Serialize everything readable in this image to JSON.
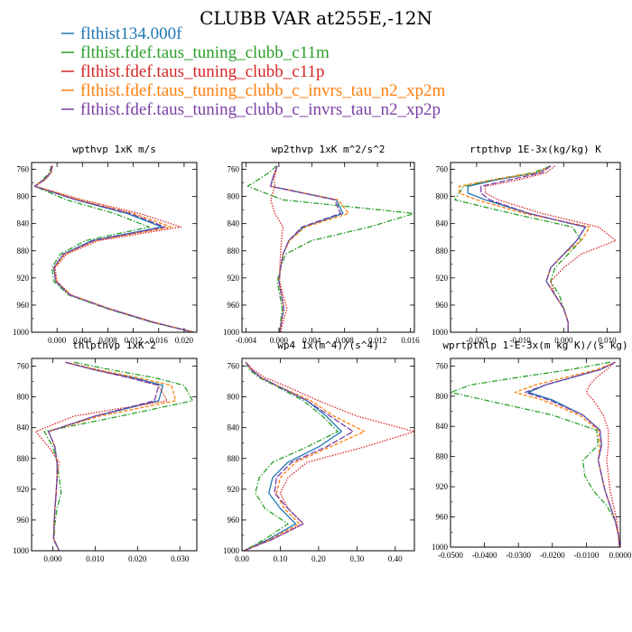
{
  "title": "CLUBB VAR at255E,-12N",
  "colors": {
    "blue": "#1f77b4",
    "green": "#2ca02c",
    "red": "#d62728",
    "orange": "#ff7f0e",
    "purple": "#7b3fa5"
  },
  "legend": [
    {
      "label": "flthist134.000f",
      "color": "#1f77b4",
      "dash": "solid"
    },
    {
      "label": "flthist.fdef.taus_tuning_clubb_c11m",
      "color": "#2ca02c",
      "dash": "dashdot"
    },
    {
      "label": "flthist.fdef.taus_tuning_clubb_c11p",
      "color": "#d62728",
      "dash": "dotted"
    },
    {
      "label": "flthist.fdef.taus_tuning_clubb_c_invrs_tau_n2_xp2m",
      "color": "#ff7f0e",
      "dash": "dashed"
    },
    {
      "label": "flthist.fdef.taus_tuning_clubb_c_invrs_tau_n2_xp2p",
      "color": "#7b3fa5",
      "dash": "longdash"
    }
  ],
  "chart_data": [
    {
      "type": "line",
      "title": "wpthvp  1xK m/s",
      "xlim": [
        -0.004,
        0.022
      ],
      "ylim": [
        1000,
        750
      ],
      "xticks": [
        0.0,
        0.004,
        0.008,
        0.012,
        0.016,
        0.02
      ],
      "xtick_labels": [
        "0.000",
        "0.004",
        "0.008",
        "0.012",
        "0.016",
        "0.020"
      ],
      "yticks": [
        760,
        800,
        840,
        880,
        920,
        960,
        1000
      ],
      "levels": [
        755,
        765,
        775,
        785,
        805,
        825,
        845,
        865,
        885,
        905,
        925,
        945,
        965,
        985,
        1000
      ],
      "series": [
        {
          "color": "blue",
          "values": [
            -0.0008,
            -0.001,
            -0.002,
            -0.0035,
            0.003,
            0.011,
            0.0165,
            0.0055,
            0.001,
            -0.0005,
            -0.0002,
            0.002,
            0.008,
            0.015,
            0.0215
          ]
        },
        {
          "color": "green",
          "values": [
            -0.0009,
            -0.0012,
            -0.0022,
            -0.0035,
            0.0015,
            0.009,
            0.0145,
            0.0045,
            0.0005,
            -0.0008,
            -0.0005,
            0.0018,
            0.0078,
            0.0148,
            0.0215
          ]
        },
        {
          "color": "red",
          "values": [
            -0.0007,
            -0.0009,
            -0.0018,
            -0.0034,
            0.004,
            0.013,
            0.0195,
            0.0065,
            0.0015,
            -0.0003,
            0.0,
            0.0022,
            0.0082,
            0.0152,
            0.0215
          ]
        },
        {
          "color": "orange",
          "values": [
            -0.0008,
            -0.001,
            -0.0019,
            -0.0035,
            0.0035,
            0.012,
            0.018,
            0.006,
            0.0012,
            -0.0004,
            -0.0001,
            0.0021,
            0.0081,
            0.0151,
            0.0215
          ]
        },
        {
          "color": "purple",
          "values": [
            -0.0008,
            -0.001,
            -0.002,
            -0.0035,
            0.003,
            0.0115,
            0.017,
            0.0058,
            0.001,
            -0.0005,
            -0.0002,
            0.002,
            0.008,
            0.015,
            0.0215
          ]
        }
      ]
    },
    {
      "type": "line",
      "title": "wp2thvp  1xK m^2/s^2",
      "xlim": [
        -0.0045,
        0.0165
      ],
      "ylim": [
        1000,
        750
      ],
      "xticks": [
        -0.004,
        0.0,
        0.004,
        0.008,
        0.012,
        0.016
      ],
      "xtick_labels": [
        "-0.004",
        "0.000",
        "0.004",
        "0.008",
        "0.012",
        "0.016"
      ],
      "yticks": [
        760,
        800,
        840,
        880,
        920,
        960,
        1000
      ],
      "levels": [
        755,
        765,
        775,
        785,
        805,
        825,
        845,
        865,
        885,
        905,
        925,
        945,
        965,
        985,
        1000
      ],
      "series": [
        {
          "color": "blue",
          "values": [
            -0.0002,
            -0.0005,
            -0.0008,
            -0.001,
            0.007,
            0.0078,
            0.003,
            0.0012,
            0.0005,
            0.0002,
            0.0,
            0.0003,
            0.0006,
            0.0003,
            0.0001
          ]
        },
        {
          "color": "green",
          "values": [
            -0.0003,
            -0.0012,
            -0.0025,
            -0.0038,
            0.0005,
            0.0165,
            0.011,
            0.004,
            0.0008,
            0.0002,
            -0.0002,
            0.0001,
            0.0004,
            0.0002,
            0.0001
          ]
        },
        {
          "color": "red",
          "values": [
            -0.0002,
            -0.0004,
            -0.0006,
            -0.0005,
            -0.001,
            -0.0005,
            0.0005,
            0.0003,
            0.0002,
            0.0001,
            0.0001,
            0.0005,
            0.001,
            0.0005,
            0.0002
          ]
        },
        {
          "color": "orange",
          "values": [
            -0.0002,
            -0.0005,
            -0.0008,
            -0.001,
            0.0072,
            0.0085,
            0.0032,
            0.0013,
            0.0005,
            0.0002,
            0.0,
            0.0003,
            0.0006,
            0.0003,
            0.0001
          ]
        },
        {
          "color": "purple",
          "values": [
            -0.0002,
            -0.0005,
            -0.0008,
            -0.001,
            0.0068,
            0.0075,
            0.0028,
            0.0012,
            0.0005,
            0.0002,
            0.0,
            0.0003,
            0.0006,
            0.0003,
            0.0001
          ]
        }
      ]
    },
    {
      "type": "line",
      "title": "rtpthvp  1E-3x(kg/kg) K",
      "xlim": [
        -0.026,
        0.013
      ],
      "ylim": [
        1000,
        750
      ],
      "xticks": [
        -0.02,
        -0.01,
        0.0,
        0.01
      ],
      "xtick_labels": [
        "-0.020",
        "-0.010",
        "0.000",
        "0.010"
      ],
      "yticks": [
        760,
        800,
        840,
        880,
        920,
        960,
        1000
      ],
      "levels": [
        755,
        765,
        775,
        785,
        795,
        805,
        825,
        845,
        865,
        885,
        905,
        925,
        945,
        965,
        985,
        1000
      ],
      "series": [
        {
          "color": "blue",
          "values": [
            -0.003,
            -0.006,
            -0.015,
            -0.022,
            -0.022,
            -0.018,
            -0.008,
            0.005,
            0.003,
            0.0,
            -0.003,
            -0.004,
            -0.002,
            0.0,
            0.001,
            0.001
          ]
        },
        {
          "color": "green",
          "values": [
            -0.003,
            -0.007,
            -0.016,
            -0.023,
            -0.024,
            -0.025,
            -0.012,
            0.002,
            0.004,
            0.001,
            -0.002,
            -0.003,
            -0.001,
            0.0,
            0.001,
            0.001
          ]
        },
        {
          "color": "red",
          "values": [
            -0.002,
            -0.004,
            -0.01,
            -0.018,
            -0.018,
            -0.015,
            -0.005,
            0.008,
            0.012,
            0.004,
            0.0,
            -0.003,
            -0.002,
            0.0,
            0.001,
            0.001
          ]
        },
        {
          "color": "orange",
          "values": [
            -0.003,
            -0.006,
            -0.016,
            -0.024,
            -0.024,
            -0.02,
            -0.009,
            0.006,
            0.004,
            0.0,
            -0.003,
            -0.004,
            -0.002,
            0.0,
            0.001,
            0.001
          ]
        },
        {
          "color": "purple",
          "values": [
            -0.003,
            -0.005,
            -0.012,
            -0.019,
            -0.019,
            -0.017,
            -0.008,
            0.005,
            0.003,
            0.0,
            -0.003,
            -0.004,
            -0.002,
            0.0,
            0.001,
            0.001
          ]
        }
      ]
    },
    {
      "type": "line",
      "title": "thlpthvp  1xK^2",
      "xlim": [
        -0.005,
        0.034
      ],
      "ylim": [
        1000,
        750
      ],
      "xticks": [
        0.0,
        0.01,
        0.02,
        0.03
      ],
      "xtick_labels": [
        "0.000",
        "0.010",
        "0.020",
        "0.030"
      ],
      "yticks": [
        760,
        800,
        840,
        880,
        920,
        960,
        1000
      ],
      "levels": [
        755,
        765,
        775,
        785,
        805,
        825,
        845,
        865,
        885,
        905,
        925,
        945,
        965,
        985,
        1000
      ],
      "series": [
        {
          "color": "blue",
          "values": [
            0.003,
            0.01,
            0.019,
            0.026,
            0.025,
            0.01,
            -0.001,
            0.0005,
            0.001,
            0.001,
            0.0008,
            0.0005,
            0.0003,
            0.0002,
            0.0015
          ]
        },
        {
          "color": "green",
          "values": [
            0.005,
            0.014,
            0.024,
            0.031,
            0.033,
            0.016,
            -0.002,
            0.0,
            0.001,
            0.0015,
            0.002,
            0.001,
            0.0005,
            0.0003,
            0.0015
          ]
        },
        {
          "color": "red",
          "values": [
            0.003,
            0.01,
            0.018,
            0.025,
            0.027,
            0.005,
            -0.004,
            -0.001,
            0.0015,
            0.001,
            0.0008,
            0.0005,
            0.0003,
            0.0002,
            0.0015
          ]
        },
        {
          "color": "orange",
          "values": [
            0.003,
            0.011,
            0.02,
            0.028,
            0.029,
            0.011,
            -0.001,
            0.0005,
            0.001,
            0.001,
            0.0008,
            0.0005,
            0.0003,
            0.0002,
            0.0015
          ]
        },
        {
          "color": "purple",
          "values": [
            0.003,
            0.01,
            0.018,
            0.025,
            0.024,
            0.01,
            -0.001,
            0.0005,
            0.001,
            0.001,
            0.0008,
            0.0005,
            0.0003,
            0.0002,
            0.0015
          ]
        }
      ]
    },
    {
      "type": "line",
      "title": "wp4  1x(m^4)/(s^4)",
      "xlim": [
        0.0,
        0.45
      ],
      "ylim": [
        1000,
        750
      ],
      "xticks": [
        0.0,
        0.1,
        0.2,
        0.3,
        0.4
      ],
      "xtick_labels": [
        "0.00",
        "0.10",
        "0.20",
        "0.30",
        "0.40"
      ],
      "yticks": [
        760,
        800,
        840,
        880,
        920,
        960,
        1000
      ],
      "levels": [
        755,
        765,
        775,
        785,
        805,
        825,
        845,
        865,
        885,
        905,
        925,
        945,
        965,
        985,
        1000
      ],
      "series": [
        {
          "color": "blue",
          "values": [
            0.01,
            0.025,
            0.05,
            0.09,
            0.17,
            0.22,
            0.26,
            0.2,
            0.12,
            0.08,
            0.07,
            0.1,
            0.14,
            0.07,
            0.005
          ]
        },
        {
          "color": "green",
          "values": [
            0.01,
            0.02,
            0.045,
            0.085,
            0.16,
            0.21,
            0.25,
            0.17,
            0.08,
            0.045,
            0.035,
            0.06,
            0.12,
            0.06,
            0.005
          ]
        },
        {
          "color": "red",
          "values": [
            0.01,
            0.03,
            0.06,
            0.11,
            0.2,
            0.3,
            0.45,
            0.32,
            0.17,
            0.12,
            0.1,
            0.12,
            0.16,
            0.08,
            0.005
          ]
        },
        {
          "color": "orange",
          "values": [
            0.01,
            0.025,
            0.05,
            0.09,
            0.18,
            0.24,
            0.32,
            0.23,
            0.14,
            0.1,
            0.09,
            0.11,
            0.15,
            0.075,
            0.005
          ]
        },
        {
          "color": "purple",
          "values": [
            0.01,
            0.025,
            0.05,
            0.09,
            0.17,
            0.23,
            0.29,
            0.22,
            0.13,
            0.09,
            0.085,
            0.12,
            0.16,
            0.08,
            0.005
          ]
        }
      ]
    },
    {
      "type": "line",
      "title": "wprtpthlp  1-E-3x(m kg K)/(s kg)",
      "xlim": [
        -0.05,
        0.0
      ],
      "ylim": [
        1000,
        750
      ],
      "xticks": [
        -0.05,
        -0.04,
        -0.03,
        -0.02,
        -0.01,
        0.0
      ],
      "xtick_labels": [
        "-0.0500",
        "-0.0400",
        "-0.0300",
        "-0.0200",
        "-0.0100",
        "0.0000"
      ],
      "yticks": [
        760,
        800,
        840,
        880,
        920,
        960,
        1000
      ],
      "levels": [
        755,
        765,
        775,
        785,
        795,
        805,
        825,
        845,
        865,
        885,
        905,
        925,
        945,
        965,
        985,
        1000
      ],
      "series": [
        {
          "color": "blue",
          "values": [
            -0.0015,
            -0.006,
            -0.014,
            -0.022,
            -0.027,
            -0.02,
            -0.011,
            -0.006,
            -0.0055,
            -0.0065,
            -0.0055,
            -0.0045,
            -0.003,
            -0.0015,
            -0.0005,
            -0.0002
          ]
        },
        {
          "color": "green",
          "values": [
            -0.003,
            -0.015,
            -0.03,
            -0.044,
            -0.05,
            -0.04,
            -0.02,
            -0.007,
            -0.0065,
            -0.011,
            -0.0105,
            -0.008,
            -0.004,
            -0.0015,
            -0.0005,
            -0.0002
          ]
        },
        {
          "color": "red",
          "values": [
            -0.0015,
            -0.004,
            -0.007,
            -0.009,
            -0.01,
            -0.008,
            -0.005,
            -0.0035,
            -0.0035,
            -0.004,
            -0.0035,
            -0.003,
            -0.002,
            -0.001,
            -0.0005,
            -0.0002
          ]
        },
        {
          "color": "orange",
          "values": [
            -0.0015,
            -0.007,
            -0.016,
            -0.025,
            -0.031,
            -0.023,
            -0.012,
            -0.0065,
            -0.006,
            -0.0065,
            -0.0055,
            -0.0045,
            -0.003,
            -0.0015,
            -0.0005,
            -0.0002
          ]
        },
        {
          "color": "purple",
          "values": [
            -0.0015,
            -0.006,
            -0.014,
            -0.022,
            -0.028,
            -0.021,
            -0.011,
            -0.006,
            -0.0055,
            -0.0065,
            -0.0055,
            -0.0045,
            -0.003,
            -0.0015,
            -0.0005,
            -0.0002
          ]
        }
      ]
    }
  ]
}
